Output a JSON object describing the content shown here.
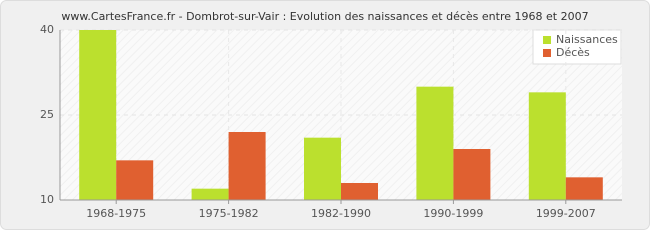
{
  "chart_data": {
    "type": "bar",
    "title": "www.CartesFrance.fr - Dombrot-sur-Vair : Evolution des naissances et décès entre 1968 et 2007",
    "categories": [
      "1968-1975",
      "1975-1982",
      "1982-1990",
      "1990-1999",
      "1999-2007"
    ],
    "series": [
      {
        "name": "Naissances",
        "color": "#bbe02e",
        "values": [
          40,
          12,
          21,
          30,
          29
        ]
      },
      {
        "name": "Décès",
        "color": "#e06030",
        "values": [
          17,
          22,
          13,
          19,
          14
        ]
      }
    ],
    "ylim": [
      10,
      40
    ],
    "yticks": [
      10,
      25,
      40
    ],
    "grid": true,
    "legend": "top-right"
  }
}
